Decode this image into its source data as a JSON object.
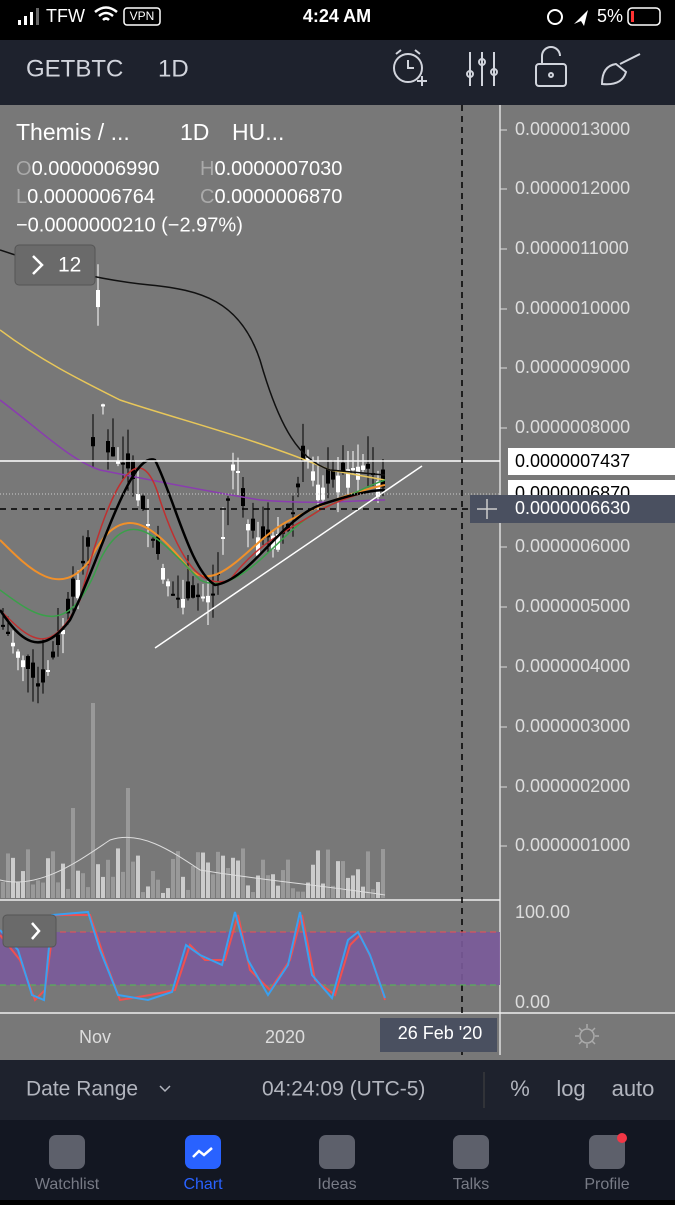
{
  "status_bar": {
    "carrier": "TFW",
    "vpn": "VPN",
    "time": "4:24 AM",
    "battery": "5%"
  },
  "header": {
    "symbol": "GETBTC",
    "interval": "1D"
  },
  "legend": {
    "name": "Themis / ...",
    "interval": "1D",
    "exchange": "HU...",
    "open_label": "O",
    "open": "0.0000006990",
    "high_label": "H",
    "high": "0.0000007030",
    "low_label": "L",
    "low": "0.0000006764",
    "close_label": "C",
    "close": "0.0000006870",
    "change": "−0.0000000210 (−2.97%)",
    "indicators_count": "12"
  },
  "price_axis": [
    "0.0000013000",
    "0.0000012000",
    "0.0000011000",
    "0.0000010000",
    "0.0000009000",
    "0.0000008000",
    "0.0000006000",
    "0.0000005000",
    "0.0000004000",
    "0.0000003000",
    "0.0000002000",
    "0.0000001000"
  ],
  "price_markers": [
    "0.0000007437",
    "0.0000006870",
    "0.0000006630"
  ],
  "oscillator_axis": [
    "100.00",
    "0.00"
  ],
  "time_axis": [
    "Nov",
    "2020"
  ],
  "crosshair_date": "26 Feb '20",
  "bottom_bar": {
    "date_range": "Date Range",
    "clock": "04:24:09 (UTC-5)",
    "percent": "%",
    "log": "log",
    "auto": "auto"
  },
  "tabs": [
    "Watchlist",
    "Chart",
    "Ideas",
    "Talks",
    "Profile"
  ]
}
